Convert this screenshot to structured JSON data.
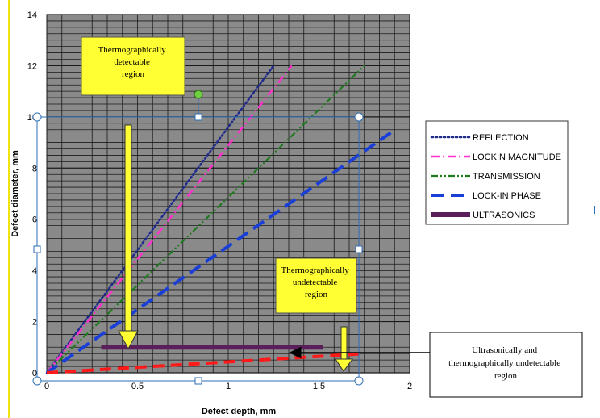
{
  "chart_data": {
    "type": "line",
    "xlabel": "Defect depth, mm",
    "ylabel": "Defect diameter, mm",
    "xlim": [
      0,
      2
    ],
    "ylim": [
      0,
      14
    ],
    "xticks": [
      "0",
      "0.5",
      "1",
      "1.5",
      "2"
    ],
    "yticks": [
      "0",
      "2",
      "4",
      "6",
      "8",
      "10",
      "12",
      "14"
    ],
    "grid": true,
    "legend_position": "right",
    "series": [
      {
        "name": "REFLECTION",
        "color": "#1f2a8c",
        "style": "dotted",
        "x": [
          0,
          1.25
        ],
        "y": [
          0,
          12
        ]
      },
      {
        "name": "LOCKIN MAGNITUDE",
        "color": "#ff33cc",
        "style": "dash-dot",
        "x": [
          0,
          1.35
        ],
        "y": [
          0,
          12
        ]
      },
      {
        "name": "TRANSMISSION",
        "color": "#1f7a1f",
        "style": "dash-dot-dot",
        "x": [
          0,
          1.75
        ],
        "y": [
          0,
          12
        ]
      },
      {
        "name": "LOCK-IN PHASE",
        "color": "#1a3fd6",
        "style": "long-dash",
        "x": [
          0,
          1.92
        ],
        "y": [
          0,
          9.5
        ]
      },
      {
        "name": "ULTRASONICS",
        "color": "#5a1f5a",
        "style": "solid-thick",
        "x": [
          0.3,
          1.52
        ],
        "y": [
          1,
          1
        ]
      }
    ],
    "extra_lines": [
      {
        "color": "#ff1a1a",
        "style": "heavy-dash",
        "x": [
          0,
          1.75
        ],
        "y": [
          0,
          0.75
        ]
      }
    ],
    "annotations": [
      {
        "text": "Thermographically detectable region",
        "arrow_to": [
          0.45,
          1.0
        ]
      },
      {
        "text": "Thermographically undetectable region",
        "arrow_to": [
          1.65,
          0.1
        ]
      },
      {
        "text": "Ultrasonically and thermographically undetectable region",
        "arrow_to": [
          1.33,
          0.8
        ]
      }
    ]
  },
  "colors": {
    "plot_bg": "#8a8a8a",
    "grid": "#1a1a1a",
    "callout_yellow": "#ffff33",
    "arrow_yellow": "#ffff33",
    "selection_blue": "#2f6fb5",
    "left_rule": "#f2e20d"
  }
}
